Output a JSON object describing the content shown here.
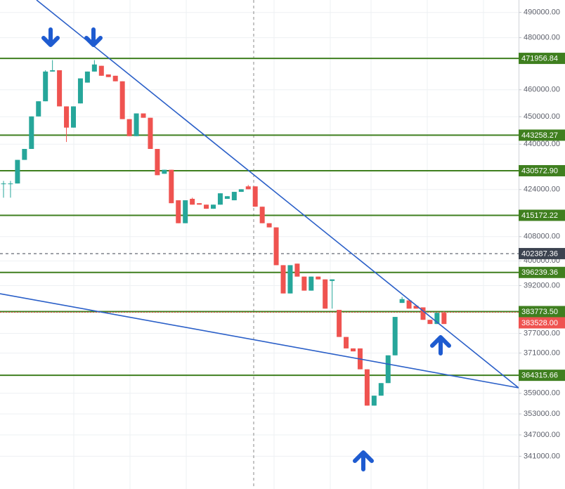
{
  "chart_data": {
    "type": "candlestick",
    "log_scale": true,
    "grid": true,
    "ylim": [
      332000,
      495000
    ],
    "yticks": [
      {
        "value": 490000,
        "label": "490000.00"
      },
      {
        "value": 480000,
        "label": "480000.00"
      },
      {
        "value": 460000,
        "label": "460000.00"
      },
      {
        "value": 450000,
        "label": "450000.00"
      },
      {
        "value": 440000,
        "label": "440000.00"
      },
      {
        "value": 424000,
        "label": "424000.00"
      },
      {
        "value": 408000,
        "label": "408000.00"
      },
      {
        "value": 400000,
        "label": "400000.00"
      },
      {
        "value": 392000,
        "label": "392000.00"
      },
      {
        "value": 377000,
        "label": "377000.00"
      },
      {
        "value": 371000,
        "label": "371000.00"
      },
      {
        "value": 359000,
        "label": "359000.00"
      },
      {
        "value": 353000,
        "label": "353000.00"
      },
      {
        "value": 347000,
        "label": "347000.00"
      },
      {
        "value": 341000,
        "label": "341000.00"
      }
    ],
    "up_color": "#26a69a",
    "down_color": "#ef5350",
    "open": [
      426100,
      426100,
      426100,
      434400,
      438300,
      450100,
      455700,
      466900,
      467400,
      453800,
      446000,
      454900,
      462700,
      466900,
      469100,
      465800,
      465300,
      463200,
      449100,
      442900,
      451200,
      449600,
      438300,
      429500,
      430900,
      420300,
      412500,
      420800,
      419300,
      418800,
      417400,
      418800,
      420800,
      420300,
      423200,
      425100,
      425100,
      418100,
      412500,
      411100,
      398600,
      389500,
      399100,
      394900,
      390400,
      394900,
      394000,
      393500,
      384300,
      375900,
      372400,
      372400,
      366100,
      355400,
      358300,
      362000,
      370300,
      386500,
      387300,
      385600,
      385100,
      381200,
      379900,
      383400
    ],
    "high": [
      427000,
      427000,
      434400,
      438300,
      450100,
      455700,
      467400,
      471300,
      467400,
      453800,
      453800,
      464300,
      466900,
      471300,
      469100,
      465800,
      465300,
      463200,
      449100,
      451200,
      451200,
      449600,
      438300,
      430900,
      430900,
      420300,
      420300,
      421200,
      419300,
      418800,
      418800,
      422700,
      421700,
      423200,
      424100,
      425600,
      425100,
      418100,
      412500,
      411100,
      398600,
      398600,
      399100,
      394900,
      394900,
      394900,
      394000,
      394000,
      384300,
      375900,
      372400,
      372400,
      366100,
      358300,
      362000,
      370300,
      382100,
      388400,
      387300,
      385600,
      385100,
      381200,
      383400,
      383900
    ],
    "low": [
      421200,
      421200,
      426100,
      434400,
      438300,
      450100,
      455700,
      466900,
      453800,
      440800,
      446000,
      454900,
      462700,
      466900,
      465300,
      464800,
      463200,
      449100,
      442900,
      442900,
      449600,
      438300,
      429000,
      429500,
      419300,
      412500,
      412500,
      418800,
      418800,
      417400,
      417400,
      418800,
      420800,
      420300,
      423200,
      424100,
      418100,
      412500,
      411100,
      398600,
      389500,
      389500,
      394900,
      390400,
      390400,
      394000,
      384700,
      384700,
      375900,
      372400,
      371500,
      366100,
      355400,
      355400,
      358300,
      362000,
      370300,
      386500,
      384700,
      384700,
      381200,
      379900,
      379900,
      379900
    ],
    "close": [
      426100,
      426100,
      434400,
      438300,
      450100,
      455700,
      466900,
      467400,
      453800,
      446000,
      453800,
      464300,
      466900,
      469600,
      465300,
      464800,
      463200,
      449100,
      442900,
      451200,
      449600,
      438300,
      429000,
      430900,
      419300,
      412500,
      420300,
      418800,
      418800,
      417400,
      418800,
      422700,
      421700,
      423200,
      424100,
      424100,
      418100,
      412500,
      411100,
      398600,
      389500,
      398600,
      394900,
      390400,
      394900,
      394000,
      384700,
      394000,
      375900,
      372400,
      371500,
      366100,
      355400,
      358300,
      362000,
      370300,
      382100,
      387700,
      384700,
      384700,
      381200,
      379900,
      383400,
      379900
    ],
    "levels": [
      {
        "value": 471956.84,
        "label": "471956.84",
        "color": "#3f7f1f",
        "style": "solid"
      },
      {
        "value": 443258.27,
        "label": "443258.27",
        "color": "#3f7f1f",
        "style": "solid"
      },
      {
        "value": 430572.9,
        "label": "430572.90",
        "color": "#3f7f1f",
        "style": "solid"
      },
      {
        "value": 415172.22,
        "label": "415172.22",
        "color": "#3f7f1f",
        "style": "solid"
      },
      {
        "value": 402387.36,
        "label": "402387.36",
        "color": "#3c4350",
        "style": "dashed"
      },
      {
        "value": 396239.36,
        "label": "396239.36",
        "color": "#3f7f1f",
        "style": "solid"
      },
      {
        "value": 383773.5,
        "label": "383773.50",
        "color": "#3f7f1f",
        "style": "solid"
      },
      {
        "value": 383528.0,
        "label": "383528.00",
        "color": "#ef5350",
        "style": "dotted"
      },
      {
        "value": 364315.66,
        "label": "364315.66",
        "color": "#3f7f1f",
        "style": "solid"
      }
    ]
  }
}
